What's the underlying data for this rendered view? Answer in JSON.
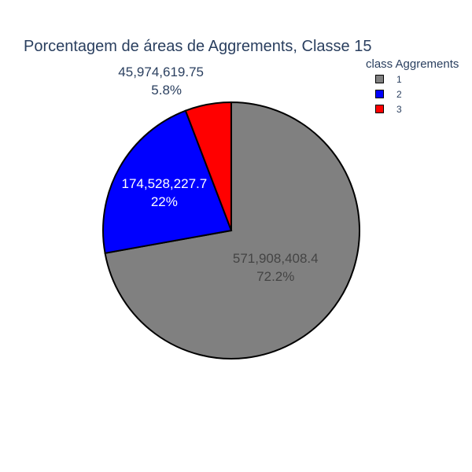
{
  "chart_data": {
    "type": "pie",
    "title": "Porcentagem de áreas de Aggrements, Classe 15",
    "legend_title": "class Aggrements",
    "legend_position": "top-right",
    "slices": [
      {
        "label": "1",
        "value": 571908408.4,
        "value_text": "571,908,408.4",
        "percent_text": "72.2%",
        "color": "#808080",
        "text_color": "#444444",
        "label_placement": "inside"
      },
      {
        "label": "2",
        "value": 174528227.7,
        "value_text": "174,528,227.7",
        "percent_text": "22%",
        "color": "#0000ff",
        "text_color": "#ffffff",
        "label_placement": "inside"
      },
      {
        "label": "3",
        "value": 45974619.75,
        "value_text": "45,974,619.75",
        "percent_text": "5.8%",
        "color": "#ff0000",
        "text_color": "#2a3f5f",
        "label_placement": "outside"
      }
    ]
  }
}
